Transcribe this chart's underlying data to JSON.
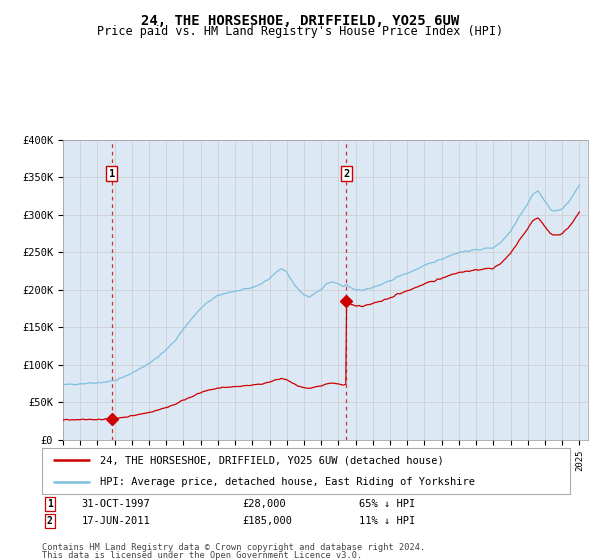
{
  "title": "24, THE HORSESHOE, DRIFFIELD, YO25 6UW",
  "subtitle": "Price paid vs. HM Land Registry's House Price Index (HPI)",
  "plot_bg": "#dce9f5",
  "hpi_color": "#7fbfdf",
  "price_color": "#cc0000",
  "marker_color": "#cc0000",
  "vline1_color": "#cc3333",
  "vline2_color": "#cc3333",
  "ylim": [
    0,
    400000
  ],
  "yticks": [
    0,
    50000,
    100000,
    150000,
    200000,
    250000,
    300000,
    350000,
    400000
  ],
  "ytick_labels": [
    "£0",
    "£50K",
    "£100K",
    "£150K",
    "£200K",
    "£250K",
    "£300K",
    "£350K",
    "£400K"
  ],
  "sale1_price": 28000,
  "sale1_price_label": "£28,000",
  "sale1_date_label": "31-OCT-1997",
  "sale1_hpi_pct": "65% ↓ HPI",
  "sale1_x": 1997.83,
  "sale2_price": 185000,
  "sale2_price_label": "£185,000",
  "sale2_date_label": "17-JUN-2011",
  "sale2_hpi_pct": "11% ↓ HPI",
  "sale2_x": 2011.46,
  "legend_line1": "24, THE HORSESHOE, DRIFFIELD, YO25 6UW (detached house)",
  "legend_line2": "HPI: Average price, detached house, East Riding of Yorkshire",
  "footnote1": "Contains HM Land Registry data © Crown copyright and database right 2024.",
  "footnote2": "This data is licensed under the Open Government Licence v3.0.",
  "xmin": 1995.0,
  "xmax": 2025.5
}
